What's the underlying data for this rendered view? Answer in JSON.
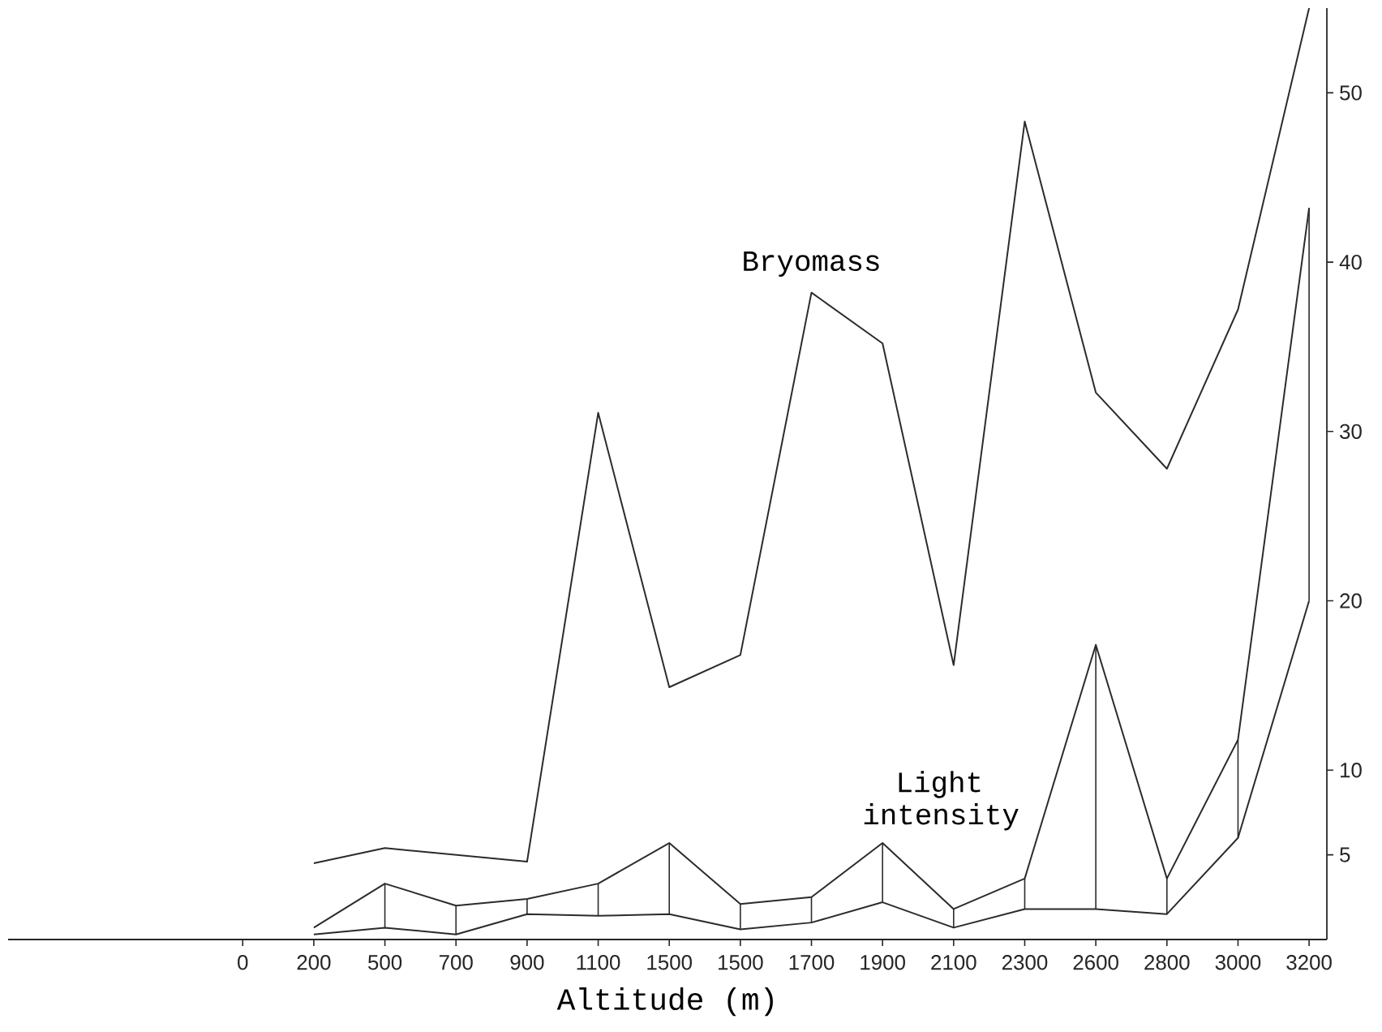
{
  "chart_data": {
    "type": "line",
    "xlabel": "Altitude (m)",
    "categories": [
      "0",
      "200",
      "500",
      "700",
      "900",
      "1100",
      "1500",
      "1500",
      "1700",
      "1900",
      "2100",
      "2300",
      "2600",
      "2800",
      "3000",
      "3200"
    ],
    "series": [
      {
        "name": "Bryomass",
        "color": "#2b2b2b",
        "values": [
          null,
          4.5,
          5.4,
          5.0,
          4.6,
          31.1,
          14.9,
          16.8,
          38.2,
          35.2,
          16.2,
          48.3,
          32.3,
          27.8,
          37.2,
          55
        ]
      },
      {
        "name": "Light intensity",
        "color": "#2b2b2b",
        "values": [
          null,
          0.7,
          3.3,
          2.0,
          2.4,
          3.3,
          5.7,
          2.1,
          2.5,
          5.7,
          1.8,
          3.6,
          17.4,
          3.6,
          11.8,
          43.2
        ]
      },
      {
        "color": "#2b2b2b",
        "values": [
          null,
          0.3,
          0.7,
          0.3,
          1.5,
          1.4,
          1.5,
          0.6,
          1.0,
          2.2,
          0.7,
          1.8,
          1.8,
          1.5,
          6.0,
          20.0
        ],
        "errors": [
          null,
          null,
          [
            0.7,
            3.3
          ],
          [
            0.3,
            2.0
          ],
          [
            1.5,
            2.4
          ],
          [
            1.4,
            3.3
          ],
          [
            1.5,
            5.7
          ],
          [
            0.6,
            2.1
          ],
          [
            1.0,
            2.5
          ],
          [
            2.2,
            5.7
          ],
          [
            0.7,
            1.8
          ],
          [
            1.8,
            3.6
          ],
          [
            1.8,
            17.4
          ],
          [
            1.5,
            3.6
          ],
          [
            6.0,
            11.8
          ],
          [
            20.0,
            43.2
          ]
        ]
      }
    ],
    "ylim": [
      0,
      55
    ],
    "yticks": [
      5,
      10,
      20,
      30,
      40,
      50
    ],
    "legend": false,
    "marker": "none",
    "line_style": "solid",
    "grid": false
  }
}
